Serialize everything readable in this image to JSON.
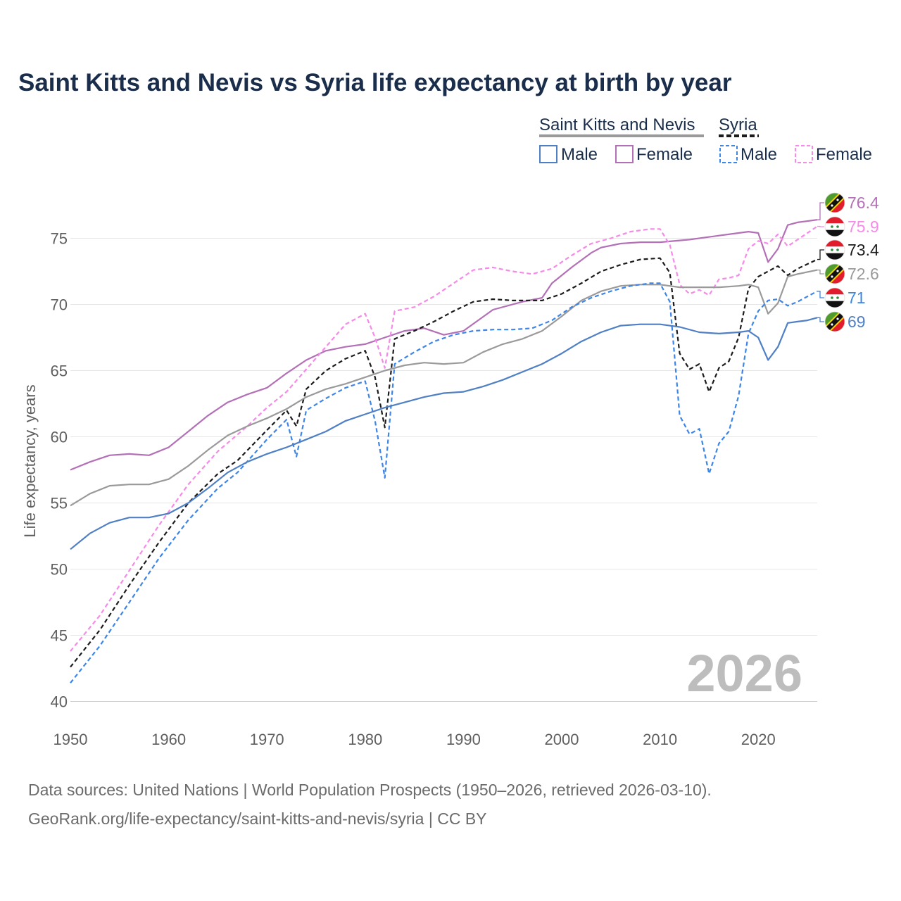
{
  "chart_data": {
    "type": "line",
    "title": "Saint Kitts and Nevis vs Syria life expectancy at birth by year",
    "xlabel": "",
    "ylabel": "Life expectancy, years",
    "xlim": [
      1950,
      2026
    ],
    "ylim": [
      40,
      78
    ],
    "x_ticks": [
      "1950",
      "1960",
      "1970",
      "1980",
      "1990",
      "2000",
      "2010",
      "2020"
    ],
    "y_ticks": [
      "40",
      "45",
      "50",
      "55",
      "60",
      "65",
      "70",
      "75"
    ],
    "current_year": "2026",
    "legend": {
      "group1": "Saint Kitts and Nevis",
      "group2": "Syria",
      "male": "Male",
      "female": "Female"
    },
    "series": [
      {
        "name": "Saint Kitts and Nevis Female",
        "country": "Saint Kitts and Nevis",
        "sex": "Female",
        "color": "#b370b7",
        "dash": "solid",
        "end_label": "76.4",
        "points": [
          [
            1950,
            57.5
          ],
          [
            1952,
            58.1
          ],
          [
            1954,
            58.6
          ],
          [
            1956,
            58.7
          ],
          [
            1958,
            58.6
          ],
          [
            1960,
            59.2
          ],
          [
            1962,
            60.4
          ],
          [
            1964,
            61.6
          ],
          [
            1966,
            62.6
          ],
          [
            1968,
            63.2
          ],
          [
            1970,
            63.7
          ],
          [
            1972,
            64.8
          ],
          [
            1974,
            65.8
          ],
          [
            1976,
            66.5
          ],
          [
            1978,
            66.8
          ],
          [
            1980,
            67.0
          ],
          [
            1982,
            67.5
          ],
          [
            1984,
            68.0
          ],
          [
            1986,
            68.2
          ],
          [
            1988,
            67.7
          ],
          [
            1990,
            68.0
          ],
          [
            1993,
            69.6
          ],
          [
            1996,
            70.2
          ],
          [
            1998,
            70.5
          ],
          [
            1999,
            71.6
          ],
          [
            2001,
            72.8
          ],
          [
            2003,
            73.9
          ],
          [
            2004,
            74.3
          ],
          [
            2006,
            74.6
          ],
          [
            2008,
            74.7
          ],
          [
            2010,
            74.7
          ],
          [
            2013,
            74.9
          ],
          [
            2016,
            75.2
          ],
          [
            2018,
            75.4
          ],
          [
            2019,
            75.5
          ],
          [
            2020,
            75.4
          ],
          [
            2021,
            73.2
          ],
          [
            2022,
            74.2
          ],
          [
            2023,
            76.0
          ],
          [
            2024,
            76.2
          ],
          [
            2026,
            76.4
          ]
        ]
      },
      {
        "name": "Syria Female",
        "country": "Syria",
        "sex": "Female",
        "color": "#f58ae8",
        "dash": "dashed",
        "end_label": "75.9",
        "points": [
          [
            1950,
            43.8
          ],
          [
            1953,
            46.5
          ],
          [
            1956,
            49.9
          ],
          [
            1959,
            53.3
          ],
          [
            1962,
            56.4
          ],
          [
            1965,
            58.9
          ],
          [
            1968,
            60.8
          ],
          [
            1970,
            62.2
          ],
          [
            1972,
            63.4
          ],
          [
            1974,
            65.1
          ],
          [
            1976,
            66.8
          ],
          [
            1978,
            68.5
          ],
          [
            1980,
            69.3
          ],
          [
            1981,
            67.5
          ],
          [
            1982,
            65.2
          ],
          [
            1983,
            69.5
          ],
          [
            1985,
            69.8
          ],
          [
            1987,
            70.6
          ],
          [
            1989,
            71.6
          ],
          [
            1991,
            72.6
          ],
          [
            1993,
            72.8
          ],
          [
            1995,
            72.5
          ],
          [
            1997,
            72.3
          ],
          [
            1999,
            72.7
          ],
          [
            2001,
            73.7
          ],
          [
            2003,
            74.6
          ],
          [
            2005,
            75.0
          ],
          [
            2007,
            75.5
          ],
          [
            2009,
            75.7
          ],
          [
            2010,
            75.7
          ],
          [
            2011,
            74.5
          ],
          [
            2012,
            71.5
          ],
          [
            2013,
            70.8
          ],
          [
            2014,
            71.1
          ],
          [
            2015,
            70.7
          ],
          [
            2016,
            71.9
          ],
          [
            2017,
            72.0
          ],
          [
            2018,
            72.2
          ],
          [
            2019,
            74.2
          ],
          [
            2020,
            74.8
          ],
          [
            2021,
            74.6
          ],
          [
            2022,
            75.3
          ],
          [
            2023,
            74.4
          ],
          [
            2024,
            74.9
          ],
          [
            2026,
            75.9
          ]
        ]
      },
      {
        "name": "Syria Total",
        "country": "Syria",
        "sex": "Total",
        "color": "#1c1c1c",
        "dash": "dashed",
        "end_label": "73.4",
        "points": [
          [
            1950,
            42.6
          ],
          [
            1953,
            45.4
          ],
          [
            1956,
            48.8
          ],
          [
            1959,
            52.0
          ],
          [
            1962,
            55.0
          ],
          [
            1965,
            57.2
          ],
          [
            1967,
            58.2
          ],
          [
            1970,
            60.5
          ],
          [
            1972,
            62.0
          ],
          [
            1973,
            60.8
          ],
          [
            1974,
            63.6
          ],
          [
            1976,
            65.0
          ],
          [
            1978,
            65.9
          ],
          [
            1980,
            66.5
          ],
          [
            1981,
            64.5
          ],
          [
            1982,
            60.7
          ],
          [
            1983,
            67.4
          ],
          [
            1985,
            68.0
          ],
          [
            1987,
            68.7
          ],
          [
            1989,
            69.5
          ],
          [
            1991,
            70.2
          ],
          [
            1993,
            70.4
          ],
          [
            1995,
            70.3
          ],
          [
            1998,
            70.3
          ],
          [
            2000,
            70.8
          ],
          [
            2002,
            71.6
          ],
          [
            2004,
            72.5
          ],
          [
            2006,
            73.0
          ],
          [
            2008,
            73.4
          ],
          [
            2010,
            73.5
          ],
          [
            2011,
            72.4
          ],
          [
            2012,
            66.3
          ],
          [
            2013,
            65.1
          ],
          [
            2014,
            65.5
          ],
          [
            2015,
            63.4
          ],
          [
            2016,
            65.2
          ],
          [
            2017,
            65.7
          ],
          [
            2018,
            67.5
          ],
          [
            2019,
            71.2
          ],
          [
            2020,
            72.1
          ],
          [
            2021,
            72.5
          ],
          [
            2022,
            72.9
          ],
          [
            2023,
            72.2
          ],
          [
            2024,
            72.7
          ],
          [
            2026,
            73.4
          ]
        ]
      },
      {
        "name": "Saint Kitts and Nevis Total",
        "country": "Saint Kitts and Nevis",
        "sex": "Total",
        "color": "#9a9a9a",
        "dash": "solid",
        "end_label": "72.6",
        "points": [
          [
            1950,
            54.8
          ],
          [
            1952,
            55.7
          ],
          [
            1954,
            56.3
          ],
          [
            1956,
            56.4
          ],
          [
            1958,
            56.4
          ],
          [
            1960,
            56.8
          ],
          [
            1962,
            57.8
          ],
          [
            1964,
            59.0
          ],
          [
            1966,
            60.1
          ],
          [
            1968,
            60.8
          ],
          [
            1970,
            61.4
          ],
          [
            1972,
            62.1
          ],
          [
            1974,
            63.0
          ],
          [
            1976,
            63.6
          ],
          [
            1978,
            64.0
          ],
          [
            1980,
            64.5
          ],
          [
            1982,
            65.0
          ],
          [
            1984,
            65.4
          ],
          [
            1986,
            65.6
          ],
          [
            1988,
            65.5
          ],
          [
            1990,
            65.6
          ],
          [
            1992,
            66.4
          ],
          [
            1994,
            67.0
          ],
          [
            1996,
            67.4
          ],
          [
            1998,
            68.0
          ],
          [
            2000,
            69.1
          ],
          [
            2002,
            70.3
          ],
          [
            2004,
            71.0
          ],
          [
            2006,
            71.4
          ],
          [
            2008,
            71.5
          ],
          [
            2010,
            71.5
          ],
          [
            2012,
            71.3
          ],
          [
            2014,
            71.3
          ],
          [
            2016,
            71.3
          ],
          [
            2018,
            71.4
          ],
          [
            2019,
            71.5
          ],
          [
            2020,
            71.3
          ],
          [
            2021,
            69.3
          ],
          [
            2022,
            70.1
          ],
          [
            2023,
            72.1
          ],
          [
            2024,
            72.3
          ],
          [
            2026,
            72.6
          ]
        ]
      },
      {
        "name": "Syria Male",
        "country": "Syria",
        "sex": "Male",
        "color": "#3d85e6",
        "dash": "dashed",
        "end_label": "71",
        "points": [
          [
            1950,
            41.4
          ],
          [
            1953,
            44.2
          ],
          [
            1956,
            47.5
          ],
          [
            1959,
            50.8
          ],
          [
            1962,
            53.7
          ],
          [
            1965,
            56.1
          ],
          [
            1967,
            57.3
          ],
          [
            1970,
            59.8
          ],
          [
            1972,
            61.3
          ],
          [
            1973,
            58.5
          ],
          [
            1974,
            62.0
          ],
          [
            1976,
            62.9
          ],
          [
            1978,
            63.7
          ],
          [
            1980,
            64.2
          ],
          [
            1981,
            61.2
          ],
          [
            1982,
            56.9
          ],
          [
            1983,
            65.5
          ],
          [
            1985,
            66.4
          ],
          [
            1987,
            67.2
          ],
          [
            1989,
            67.7
          ],
          [
            1991,
            68.0
          ],
          [
            1993,
            68.1
          ],
          [
            1995,
            68.1
          ],
          [
            1997,
            68.2
          ],
          [
            1999,
            68.8
          ],
          [
            2001,
            69.8
          ],
          [
            2003,
            70.5
          ],
          [
            2005,
            71.0
          ],
          [
            2007,
            71.4
          ],
          [
            2009,
            71.6
          ],
          [
            2010,
            71.6
          ],
          [
            2011,
            70.2
          ],
          [
            2012,
            61.6
          ],
          [
            2013,
            60.2
          ],
          [
            2014,
            60.6
          ],
          [
            2015,
            57.2
          ],
          [
            2016,
            59.5
          ],
          [
            2017,
            60.4
          ],
          [
            2018,
            63.1
          ],
          [
            2019,
            67.8
          ],
          [
            2020,
            69.5
          ],
          [
            2021,
            70.3
          ],
          [
            2022,
            70.4
          ],
          [
            2023,
            69.9
          ],
          [
            2024,
            70.2
          ],
          [
            2026,
            71.0
          ]
        ]
      },
      {
        "name": "Saint Kitts and Nevis Male",
        "country": "Saint Kitts and Nevis",
        "sex": "Male",
        "color": "#4f7fc4",
        "dash": "solid",
        "end_label": "69",
        "points": [
          [
            1950,
            51.5
          ],
          [
            1952,
            52.7
          ],
          [
            1954,
            53.5
          ],
          [
            1956,
            53.9
          ],
          [
            1958,
            53.9
          ],
          [
            1960,
            54.2
          ],
          [
            1962,
            55.0
          ],
          [
            1964,
            56.1
          ],
          [
            1966,
            57.3
          ],
          [
            1968,
            58.1
          ],
          [
            1970,
            58.7
          ],
          [
            1972,
            59.2
          ],
          [
            1974,
            59.8
          ],
          [
            1976,
            60.4
          ],
          [
            1978,
            61.2
          ],
          [
            1980,
            61.7
          ],
          [
            1982,
            62.2
          ],
          [
            1984,
            62.6
          ],
          [
            1986,
            63.0
          ],
          [
            1988,
            63.3
          ],
          [
            1990,
            63.4
          ],
          [
            1992,
            63.8
          ],
          [
            1994,
            64.3
          ],
          [
            1996,
            64.9
          ],
          [
            1998,
            65.5
          ],
          [
            2000,
            66.3
          ],
          [
            2002,
            67.2
          ],
          [
            2004,
            67.9
          ],
          [
            2006,
            68.4
          ],
          [
            2008,
            68.5
          ],
          [
            2010,
            68.5
          ],
          [
            2012,
            68.3
          ],
          [
            2014,
            67.9
          ],
          [
            2016,
            67.8
          ],
          [
            2018,
            67.9
          ],
          [
            2019,
            68.0
          ],
          [
            2020,
            67.5
          ],
          [
            2021,
            65.8
          ],
          [
            2022,
            66.8
          ],
          [
            2023,
            68.6
          ],
          [
            2024,
            68.7
          ],
          [
            2025,
            68.8
          ],
          [
            2026,
            69.0
          ]
        ]
      }
    ]
  },
  "flags": {
    "saint_kitts_and_nevis": {
      "green": "#4f9b2e",
      "red": "#e11c2c",
      "black": "#111111",
      "yellow": "#f6d600"
    },
    "syria": {
      "red": "#e11c2c",
      "white": "#ffffff",
      "black": "#111111",
      "star": "#2e8b3a"
    }
  },
  "footer": {
    "line1": "Data sources: United Nations | World Population Prospects (1950–2026, retrieved 2026-03-10).",
    "line2": "GeoRank.org/life-expectancy/saint-kitts-and-nevis/syria | CC BY"
  }
}
